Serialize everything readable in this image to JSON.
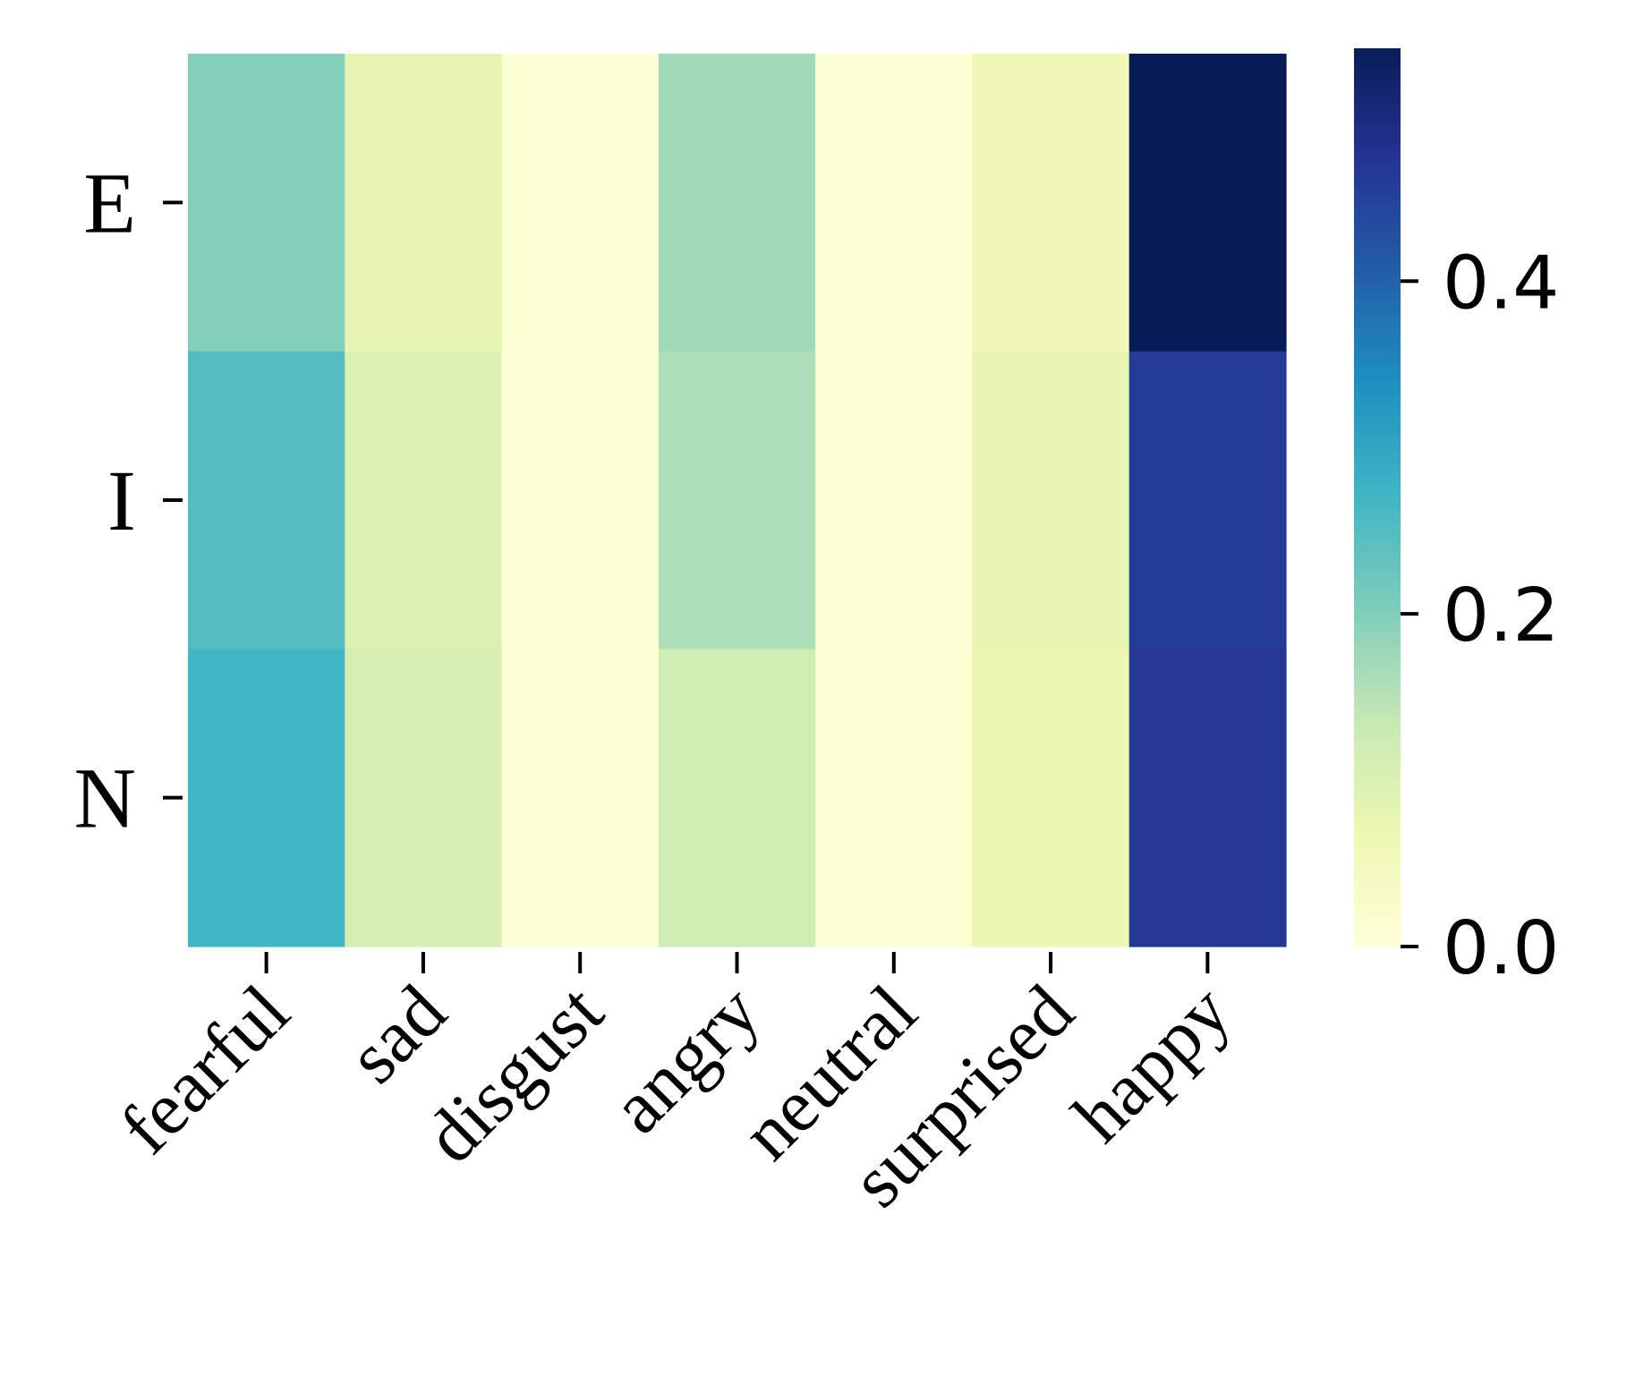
{
  "chart_data": {
    "type": "heatmap",
    "title": "",
    "xlabel": "",
    "ylabel": "",
    "rows": [
      "E",
      "I",
      "N"
    ],
    "columns": [
      "fearful",
      "sad",
      "disgust",
      "angry",
      "neutral",
      "surprised",
      "happy"
    ],
    "values": [
      [
        0.2,
        0.08,
        0.01,
        0.17,
        0.01,
        0.06,
        0.54
      ],
      [
        0.25,
        0.1,
        0.01,
        0.16,
        0.01,
        0.08,
        0.46
      ],
      [
        0.27,
        0.11,
        0.01,
        0.12,
        0.01,
        0.07,
        0.47
      ]
    ],
    "colormap": "YlGnBu",
    "colorbar": {
      "min": 0.0,
      "max": 0.54,
      "ticks": [
        0.0,
        0.2,
        0.4
      ],
      "tick_labels": [
        "0.0",
        "0.2",
        "0.4"
      ]
    },
    "grid": false
  }
}
